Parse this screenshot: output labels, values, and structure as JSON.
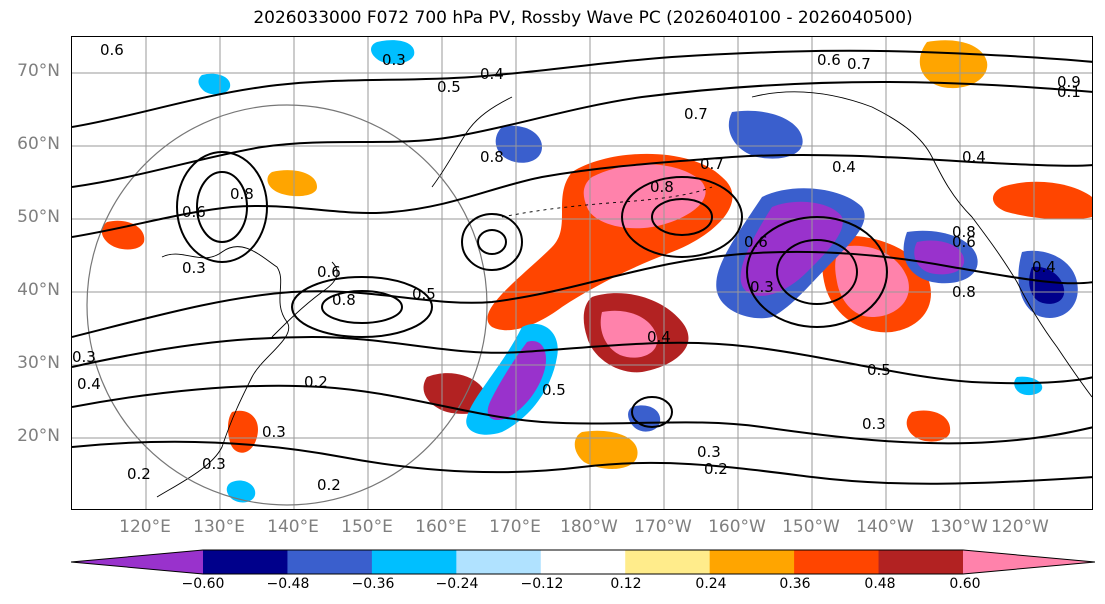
{
  "title": "2026033000 F072 700 hPa PV, Rossby Wave PC (2026040100 - 2026040500)",
  "lat_ticks": [
    "70°N",
    "60°N",
    "50°N",
    "40°N",
    "30°N",
    "20°N"
  ],
  "lon_ticks": [
    "120°E",
    "130°E",
    "140°E",
    "150°E",
    "160°E",
    "170°E",
    "180°W",
    "170°W",
    "160°W",
    "150°W",
    "140°W",
    "130°W",
    "120°W"
  ],
  "colorbar": {
    "colors": [
      "#9932CC",
      "#00008B",
      "#3A5FCD",
      "#00BFFF",
      "#B0E2FF",
      "#FFFFFF",
      "#FFEC8B",
      "#FFA500",
      "#FF4500",
      "#B22222",
      "#FF82AB"
    ],
    "tick_labels": [
      "−0.60",
      "−0.48",
      "−0.36",
      "−0.24",
      "−0.12",
      "0.12",
      "0.24",
      "0.36",
      "0.48",
      "0.60"
    ]
  },
  "contour_labels": [
    "0.6",
    "0.3",
    "0.4",
    "0.5",
    "0.6",
    "0.7",
    "0.7",
    "0.1",
    "0.4",
    "0.8",
    "0.8",
    "0.7",
    "0.6",
    "0.8",
    "0.3",
    "0.6",
    "0.8",
    "0.5",
    "0.6",
    "0.3",
    "0.4",
    "0.8",
    "0.2",
    "0.3",
    "0.4",
    "0.5",
    "0.5",
    "0.3",
    "0.3",
    "0.2",
    "0.3",
    "0.2",
    "0.2",
    "0.4",
    "0.3",
    "0.8",
    "0.6",
    "0.4",
    "0.9"
  ]
}
